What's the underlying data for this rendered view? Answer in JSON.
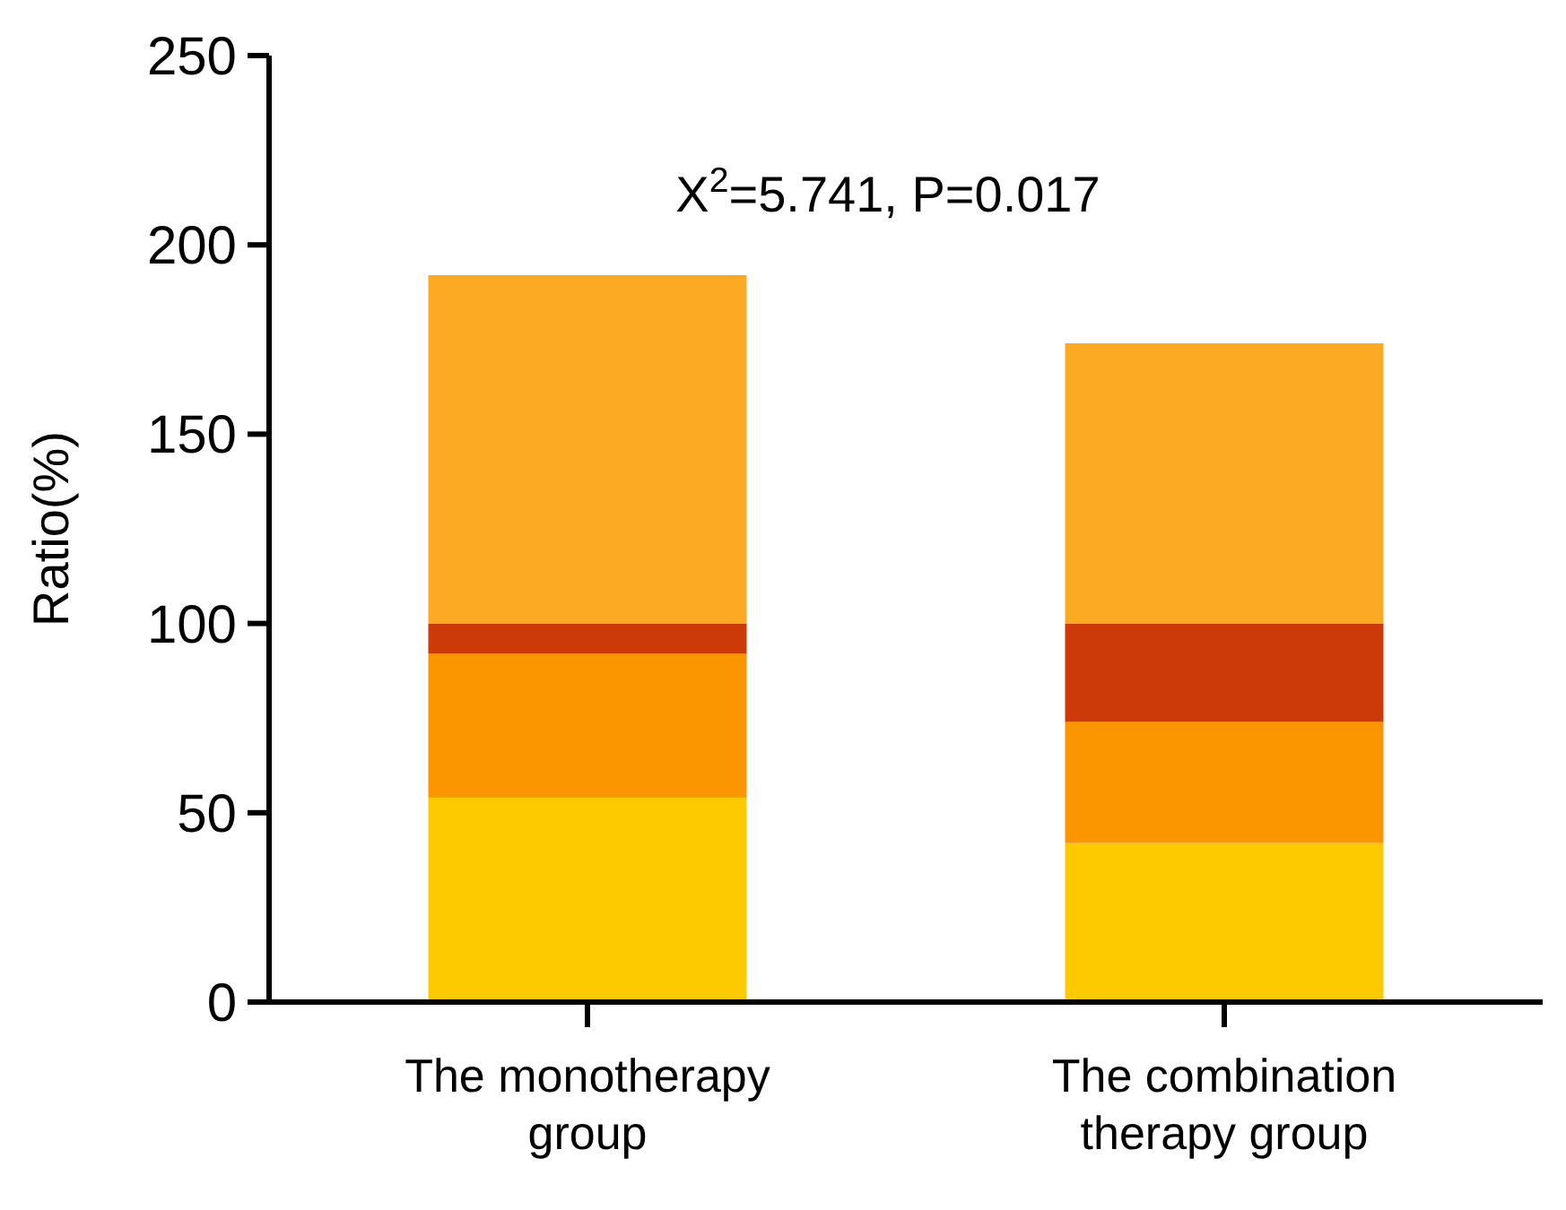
{
  "chart_data": {
    "type": "bar",
    "stacked": true,
    "ylabel": "Ratio(%)",
    "categories": [
      "The monotherapy group",
      "The combination therapy group"
    ],
    "series": [
      {
        "color": "#fdca00",
        "values": [
          54,
          42
        ]
      },
      {
        "color": "#fb9600",
        "values": [
          38,
          32
        ]
      },
      {
        "color": "#cc3a09",
        "values": [
          8,
          26
        ]
      },
      {
        "color": "#fcaa23",
        "values": [
          92,
          74
        ]
      }
    ],
    "ylim": [
      0,
      250
    ],
    "yticks": [
      0,
      50,
      100,
      150,
      200,
      250
    ],
    "grid": false,
    "annotations": [
      "X$^{2}$=5.741, P=0.017"
    ]
  }
}
